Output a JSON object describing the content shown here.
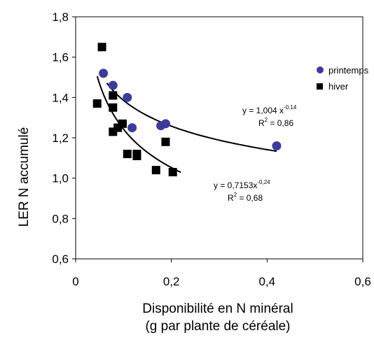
{
  "chart_data": {
    "type": "scatter",
    "title": "",
    "xlabel_line1": "Disponibilité en N minéral",
    "xlabel_line2": "(g par plante de céréale)",
    "ylabel": "LER N accumulé",
    "xlim": [
      0,
      0.6
    ],
    "ylim": [
      0.6,
      1.8
    ],
    "x_ticks": [
      0,
      0.2,
      0.4,
      0.6
    ],
    "x_tick_labels": [
      "0",
      "0,2",
      "0,4",
      "0,6"
    ],
    "y_ticks": [
      0.6,
      0.8,
      1.0,
      1.2,
      1.4,
      1.6,
      1.8
    ],
    "y_tick_labels": [
      "0,6",
      "0,8",
      "1,0",
      "1,2",
      "1,4",
      "1,6",
      "1,8"
    ],
    "grid": false,
    "legend_position": "right",
    "series": [
      {
        "name": "printemps",
        "marker": "circle",
        "color": "#3b3b9e",
        "points": [
          [
            0.058,
            1.52
          ],
          [
            0.078,
            1.46
          ],
          [
            0.108,
            1.4
          ],
          [
            0.118,
            1.25
          ],
          [
            0.178,
            1.26
          ],
          [
            0.188,
            1.27
          ],
          [
            0.42,
            1.16
          ]
        ],
        "trend": {
          "a": 1.004,
          "b": -0.14,
          "x_range": [
            0.065,
            0.42
          ]
        },
        "equation_main": "y = 1,004 x",
        "equation_exp": "-0,14",
        "r2_main": "R",
        "r2_sup": "2",
        "r2_value": " = 0,86"
      },
      {
        "name": "hiver",
        "marker": "square",
        "color": "#000000",
        "points": [
          [
            0.055,
            1.65
          ],
          [
            0.045,
            1.37
          ],
          [
            0.078,
            1.41
          ],
          [
            0.078,
            1.35
          ],
          [
            0.078,
            1.23
          ],
          [
            0.088,
            1.25
          ],
          [
            0.098,
            1.27
          ],
          [
            0.108,
            1.12
          ],
          [
            0.128,
            1.12
          ],
          [
            0.128,
            1.11
          ],
          [
            0.168,
            1.04
          ],
          [
            0.188,
            1.18
          ],
          [
            0.203,
            1.03
          ]
        ],
        "trend": {
          "a": 0.7153,
          "b": -0.24,
          "x_range": [
            0.045,
            0.22
          ]
        },
        "equation_main": "y = 0,7153x",
        "equation_exp": "-0,24",
        "r2_main": "R",
        "r2_sup": "2",
        "r2_value": " = 0,68"
      }
    ]
  }
}
